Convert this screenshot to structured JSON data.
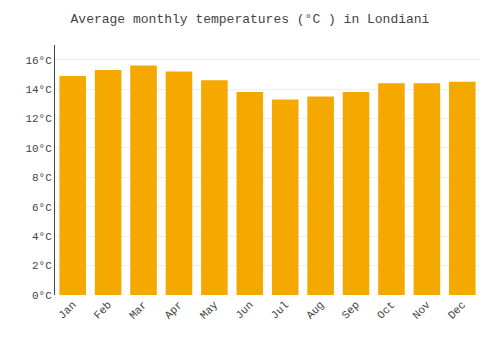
{
  "chart_data": {
    "type": "bar",
    "title": "Average monthly temperatures (°C ) in Londiani",
    "categories": [
      "Jan",
      "Feb",
      "Mar",
      "Apr",
      "May",
      "Jun",
      "Jul",
      "Aug",
      "Sep",
      "Oct",
      "Nov",
      "Dec"
    ],
    "values": [
      14.9,
      15.3,
      15.6,
      15.2,
      14.6,
      13.8,
      13.3,
      13.5,
      13.8,
      14.4,
      14.4,
      14.5
    ],
    "color": "#F5A800",
    "ylim": [
      0,
      17
    ],
    "yticks": [
      {
        "value": 0,
        "label": "0°C"
      },
      {
        "value": 2,
        "label": "2°C"
      },
      {
        "value": 4,
        "label": "4°C"
      },
      {
        "value": 6,
        "label": "6°C"
      },
      {
        "value": 8,
        "label": "8°C"
      },
      {
        "value": 10,
        "label": "10°C"
      },
      {
        "value": 12,
        "label": "12°C"
      },
      {
        "value": 14,
        "label": "14°C"
      },
      {
        "value": 16,
        "label": "16°C"
      }
    ],
    "grid": true
  }
}
